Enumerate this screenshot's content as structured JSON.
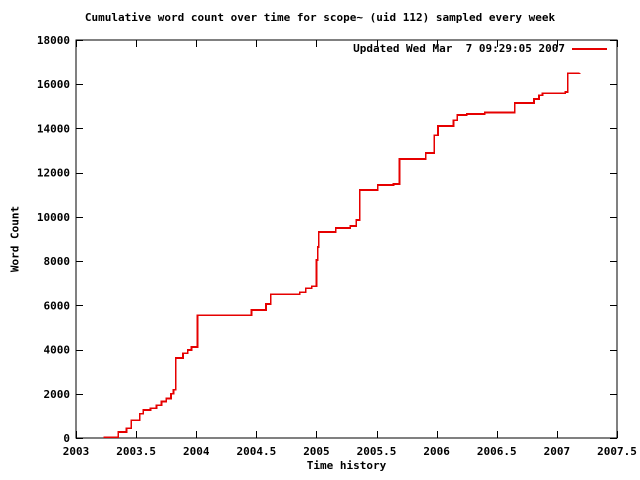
{
  "colors": {
    "background": "#ffffff",
    "frame": "#000000",
    "text": "#000000",
    "series_red": "#e60000"
  },
  "chart_data": {
    "type": "line",
    "style": "steps",
    "title": "Cumulative word count over time for scope~ (uid 112) sampled every week",
    "xlabel": "Time history",
    "ylabel": "Word Count",
    "xlim": [
      2003,
      2007.5
    ],
    "ylim": [
      0,
      18000
    ],
    "grid": false,
    "legend_position": "top-right-inside",
    "xticks": [
      2003,
      2003.5,
      2004,
      2004.5,
      2005,
      2005.5,
      2006,
      2006.5,
      2007,
      2007.5
    ],
    "xtick_labels": [
      "2003",
      "2003.5",
      "2004",
      "2004.5",
      "2005",
      "2005.5",
      "2006",
      "2006.5",
      "2007",
      "2007.5"
    ],
    "yticks": [
      0,
      2000,
      4000,
      6000,
      8000,
      10000,
      12000,
      14000,
      16000,
      18000
    ],
    "ytick_labels": [
      "0",
      "2000",
      "4000",
      "6000",
      "8000",
      "10000",
      "12000",
      "14000",
      "16000",
      "18000"
    ],
    "series": [
      {
        "name": "Updated Wed Mar  7 09:29:05 2007",
        "color": "#e60000",
        "points": [
          [
            2003.23,
            40
          ],
          [
            2003.35,
            270
          ],
          [
            2003.42,
            450
          ],
          [
            2003.46,
            810
          ],
          [
            2003.53,
            1100
          ],
          [
            2003.56,
            1270
          ],
          [
            2003.62,
            1350
          ],
          [
            2003.67,
            1490
          ],
          [
            2003.71,
            1650
          ],
          [
            2003.75,
            1790
          ],
          [
            2003.79,
            2000
          ],
          [
            2003.81,
            2180
          ],
          [
            2003.83,
            3620
          ],
          [
            2003.89,
            3840
          ],
          [
            2003.93,
            3980
          ],
          [
            2003.96,
            4120
          ],
          [
            2004.01,
            5560
          ],
          [
            2004.46,
            5790
          ],
          [
            2004.58,
            6060
          ],
          [
            2004.62,
            6510
          ],
          [
            2004.86,
            6600
          ],
          [
            2004.91,
            6780
          ],
          [
            2004.96,
            6870
          ],
          [
            2005.0,
            8050
          ],
          [
            2005.01,
            8640
          ],
          [
            2005.02,
            9320
          ],
          [
            2005.16,
            9500
          ],
          [
            2005.28,
            9590
          ],
          [
            2005.33,
            9860
          ],
          [
            2005.36,
            11220
          ],
          [
            2005.51,
            11440
          ],
          [
            2005.64,
            11490
          ],
          [
            2005.69,
            12620
          ],
          [
            2005.91,
            12890
          ],
          [
            2005.98,
            13700
          ],
          [
            2006.01,
            14110
          ],
          [
            2006.14,
            14370
          ],
          [
            2006.17,
            14610
          ],
          [
            2006.25,
            14660
          ],
          [
            2006.4,
            14720
          ],
          [
            2006.65,
            15150
          ],
          [
            2006.81,
            15330
          ],
          [
            2006.85,
            15510
          ],
          [
            2006.88,
            15600
          ],
          [
            2007.07,
            15650
          ],
          [
            2007.09,
            16500
          ],
          [
            2007.19,
            16510
          ]
        ]
      }
    ]
  },
  "legend": {
    "label": "Updated Wed Mar  7 09:29:05 2007"
  }
}
